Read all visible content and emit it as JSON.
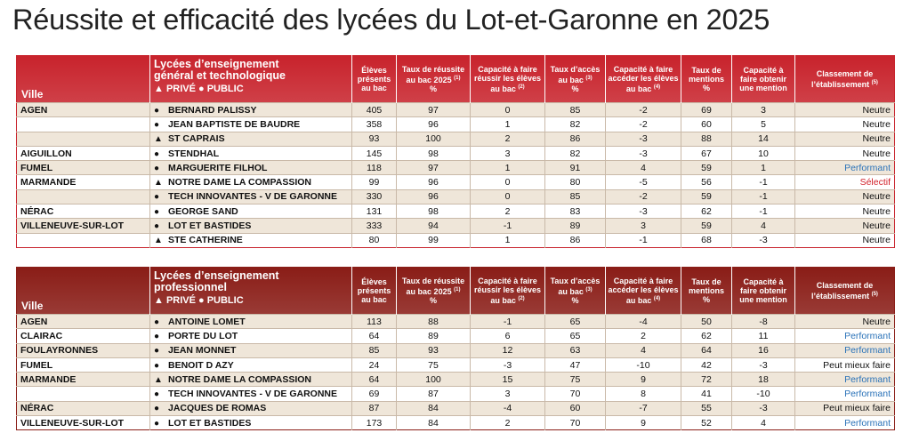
{
  "title": "Réussite et efficacité des lycées du Lot-et-Garonne en 2025",
  "tables": [
    {
      "header_color": "#c8232c",
      "header": {
        "ville": "Ville",
        "school": [
          "Lycées d’enseignement",
          "général et technologique"
        ],
        "legend": "▲ PRIVÉ ● PUBLIC",
        "columns": [
          {
            "text": "Élèves présents au bac"
          },
          {
            "text": "Taux de réussite au bac 2025",
            "note": "(1)",
            "unit": "%"
          },
          {
            "text": "Capacité à faire réussir les élèves au bac",
            "note": "(2)"
          },
          {
            "text": "Taux d’accès au bac",
            "note": "(3)",
            "unit": "%"
          },
          {
            "text": "Capacité à faire accéder les élèves au bac",
            "note": "(4)"
          },
          {
            "text": "Taux de mentions",
            "unit": "%"
          },
          {
            "text": "Capacité à faire obtenir une mention"
          },
          {
            "text": "Classement de l’établissement",
            "note": "(5)"
          }
        ]
      },
      "rows": [
        {
          "ville": "AGEN",
          "marker": "●",
          "school": "BERNARD PALISSY",
          "values": [
            405,
            97,
            0,
            85,
            -2,
            69,
            3
          ],
          "classement": "Neutre",
          "classement_color": "#111111"
        },
        {
          "ville": null,
          "marker": "●",
          "school": "JEAN BAPTISTE DE BAUDRE",
          "values": [
            358,
            96,
            1,
            82,
            -2,
            60,
            5
          ],
          "classement": "Neutre",
          "classement_color": "#111111"
        },
        {
          "ville": null,
          "marker": "▲",
          "school": "ST CAPRAIS",
          "values": [
            93,
            100,
            2,
            86,
            -3,
            88,
            14
          ],
          "classement": "Neutre",
          "classement_color": "#111111"
        },
        {
          "ville": "AIGUILLON",
          "marker": "●",
          "school": "STENDHAL",
          "values": [
            145,
            98,
            3,
            82,
            -3,
            67,
            10
          ],
          "classement": "Neutre",
          "classement_color": "#111111"
        },
        {
          "ville": "FUMEL",
          "marker": "●",
          "school": "MARGUERITE FILHOL",
          "values": [
            118,
            97,
            1,
            91,
            4,
            59,
            1
          ],
          "classement": "Performant",
          "classement_color": "#2a72b8"
        },
        {
          "ville": "MARMANDE",
          "marker": "▲",
          "school": "NOTRE DAME LA COMPASSION",
          "values": [
            99,
            96,
            0,
            80,
            -5,
            56,
            -1
          ],
          "classement": "Sélectif",
          "classement_color": "#d2222b"
        },
        {
          "ville": null,
          "marker": "●",
          "school": "TECH INNOVANTES - V DE GARONNE",
          "values": [
            330,
            96,
            0,
            85,
            -2,
            59,
            -1
          ],
          "classement": "Neutre",
          "classement_color": "#111111"
        },
        {
          "ville": "NÉRAC",
          "marker": "●",
          "school": "GEORGE SAND",
          "values": [
            131,
            98,
            2,
            83,
            -3,
            62,
            -1
          ],
          "classement": "Neutre",
          "classement_color": "#111111"
        },
        {
          "ville": "VILLENEUVE-SUR-LOT",
          "marker": "●",
          "school": "LOT ET BASTIDES",
          "values": [
            333,
            94,
            -1,
            89,
            3,
            59,
            4
          ],
          "classement": "Neutre",
          "classement_color": "#111111"
        },
        {
          "ville": null,
          "marker": "▲",
          "school": "STE CATHERINE",
          "values": [
            80,
            99,
            1,
            86,
            -1,
            68,
            -3
          ],
          "classement": "Neutre",
          "classement_color": "#111111"
        }
      ]
    },
    {
      "header_color": "#8a1d17",
      "header": {
        "ville": "Ville",
        "school": [
          "Lycées d’enseignement",
          "professionnel"
        ],
        "legend": "▲ PRIVÉ ● PUBLIC",
        "columns": [
          {
            "text": "Élèves présents au bac"
          },
          {
            "text": "Taux de réussite au bac 2025",
            "note": "(1)",
            "unit": "%"
          },
          {
            "text": "Capacité à faire réussir les élèves au bac",
            "note": "(2)"
          },
          {
            "text": "Taux d’accès au bac",
            "note": "(3)",
            "unit": "%"
          },
          {
            "text": "Capacité à faire accéder les élèves au bac",
            "note": "(4)"
          },
          {
            "text": "Taux de mentions",
            "unit": "%"
          },
          {
            "text": "Capacité à faire obtenir une mention"
          },
          {
            "text": "Classement de l’établissement",
            "note": "(5)"
          }
        ]
      },
      "rows": [
        {
          "ville": "AGEN",
          "marker": "●",
          "school": "ANTOINE LOMET",
          "values": [
            113,
            88,
            -1,
            65,
            -4,
            50,
            -8
          ],
          "classement": "Neutre",
          "classement_color": "#111111"
        },
        {
          "ville": "CLAIRAC",
          "marker": "●",
          "school": "PORTE DU LOT",
          "values": [
            64,
            89,
            6,
            65,
            2,
            62,
            11
          ],
          "classement": "Performant",
          "classement_color": "#2a72b8"
        },
        {
          "ville": "FOULAYRONNES",
          "marker": "●",
          "school": "JEAN MONNET",
          "values": [
            85,
            93,
            12,
            63,
            4,
            64,
            16
          ],
          "classement": "Performant",
          "classement_color": "#2a72b8"
        },
        {
          "ville": "FUMEL",
          "marker": "●",
          "school": "BENOIT D AZY",
          "values": [
            24,
            75,
            -3,
            47,
            -10,
            42,
            -3
          ],
          "classement": "Peut mieux faire",
          "classement_color": "#111111"
        },
        {
          "ville": "MARMANDE",
          "marker": "▲",
          "school": "NOTRE DAME LA COMPASSION",
          "values": [
            64,
            100,
            15,
            75,
            9,
            72,
            18
          ],
          "classement": "Performant",
          "classement_color": "#2a72b8"
        },
        {
          "ville": null,
          "marker": "●",
          "school": "TECH INNOVANTES - V DE GARONNE",
          "values": [
            69,
            87,
            3,
            70,
            8,
            41,
            -10
          ],
          "classement": "Performant",
          "classement_color": "#2a72b8"
        },
        {
          "ville": "NÉRAC",
          "marker": "●",
          "school": "JACQUES DE ROMAS",
          "values": [
            87,
            84,
            -4,
            60,
            -7,
            55,
            -3
          ],
          "classement": "Peut mieux faire",
          "classement_color": "#111111"
        },
        {
          "ville": "VILLENEUVE-SUR-LOT",
          "marker": "●",
          "school": "LOT ET BASTIDES",
          "values": [
            173,
            84,
            2,
            70,
            9,
            52,
            4
          ],
          "classement": "Performant",
          "classement_color": "#2a72b8"
        }
      ]
    }
  ]
}
